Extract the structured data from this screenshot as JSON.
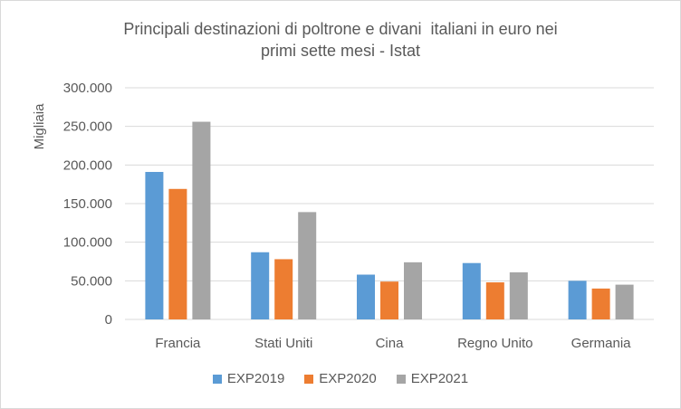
{
  "chart_data": {
    "type": "bar",
    "title": [
      "Principali destinazioni di poltrone e divani  italiani in euro nei",
      "primi sette mesi - Istat"
    ],
    "ylabel": "Migliaia",
    "xlabel": "",
    "categories": [
      "Francia",
      "Stati Uniti",
      "Cina",
      "Regno Unito",
      "Germania"
    ],
    "series": [
      {
        "name": "EXP2019",
        "color": "#5b9bd5",
        "values": [
          191000,
          87000,
          58000,
          73000,
          50000
        ]
      },
      {
        "name": "EXP2020",
        "color": "#ed7d31",
        "values": [
          169000,
          78000,
          49000,
          48000,
          40000
        ]
      },
      {
        "name": "EXP2021",
        "color": "#a5a5a5",
        "values": [
          256000,
          139000,
          74000,
          61000,
          45000
        ]
      }
    ],
    "ylim": [
      0,
      300000
    ],
    "yticks": [
      0,
      50000,
      100000,
      150000,
      200000,
      250000,
      300000
    ],
    "ytick_labels": [
      "0",
      "50.000",
      "100.000",
      "150.000",
      "200.000",
      "250.000",
      "300.000"
    ],
    "grid": true,
    "legend_position": "bottom"
  }
}
